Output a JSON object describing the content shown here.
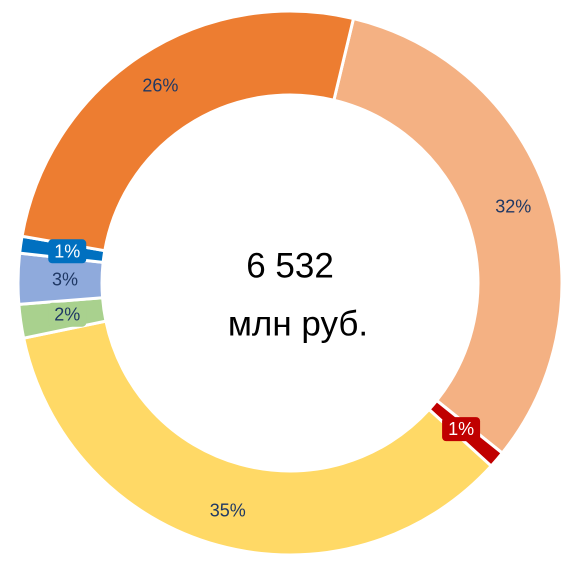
{
  "chart_data": {
    "type": "donut",
    "center_text": [
      "6 532",
      "млн руб."
    ],
    "categories": [
      null,
      null,
      null,
      null,
      null,
      null,
      null
    ],
    "values": [
      32,
      1,
      35,
      2,
      3,
      1,
      26
    ],
    "value_labels": [
      "32%",
      "1%",
      "35%",
      "2%",
      "3%",
      "1%",
      "26%"
    ],
    "colors": [
      "#f4b183",
      "#c00000",
      "#ffd966",
      "#a9d18e",
      "#8faadc",
      "#0070c0",
      "#ed7d31"
    ]
  }
}
